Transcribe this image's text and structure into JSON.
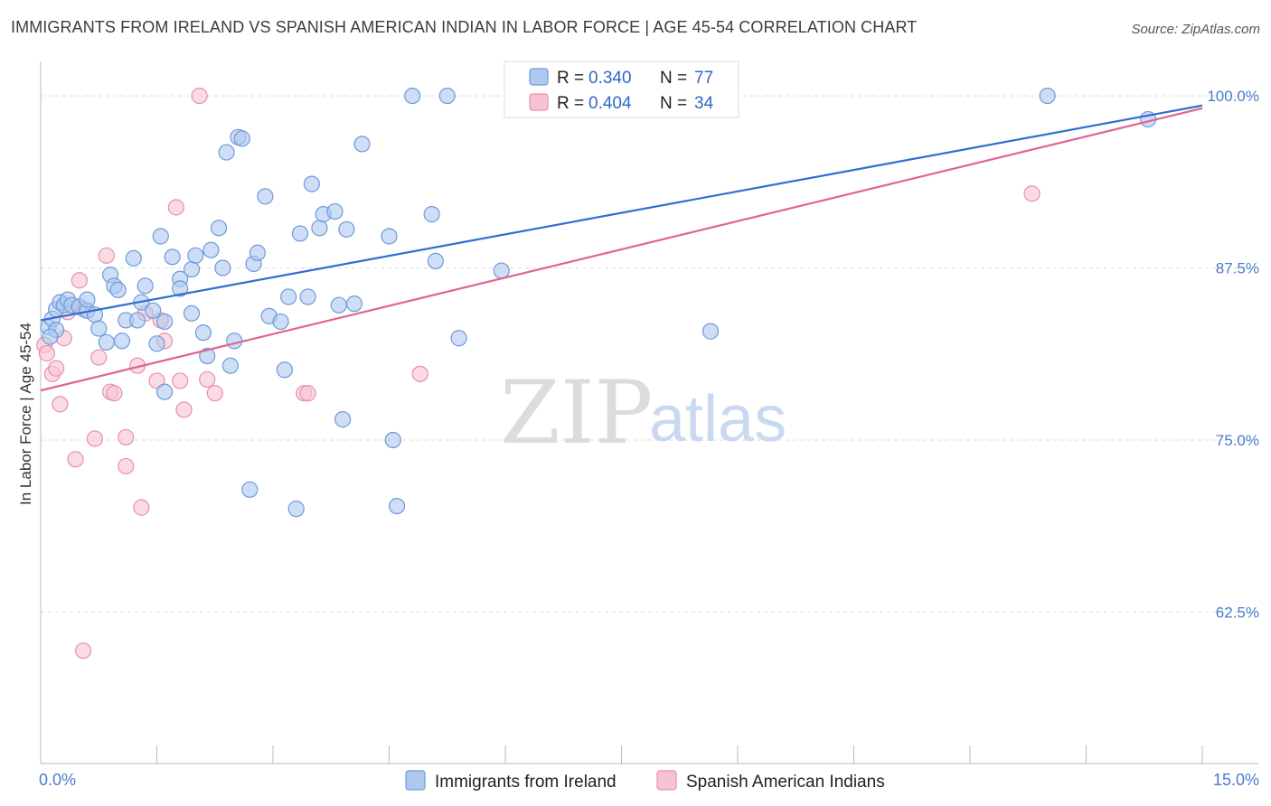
{
  "title": "IMMIGRANTS FROM IRELAND VS SPANISH AMERICAN INDIAN IN LABOR FORCE | AGE 45-54 CORRELATION CHART",
  "source": "Source: ZipAtlas.com",
  "watermark": {
    "zip": "ZIP",
    "atlas": "atlas"
  },
  "colors": {
    "blue_fill": "#aec8f0",
    "blue_stroke": "#6f9ad8",
    "blue_line": "#2f6fd0",
    "pink_fill": "#f7c3d2",
    "pink_stroke": "#e98fab",
    "pink_line": "#e0648f",
    "tick_text": "#4a7cc9",
    "grid": "#dddddd"
  },
  "legend": {
    "r_label": "R =",
    "n_label": "N =",
    "series": [
      {
        "r": "0.340",
        "n": "77"
      },
      {
        "r": "0.404",
        "n": "34"
      }
    ]
  },
  "chart_data": {
    "type": "scatter",
    "title": "IMMIGRANTS FROM IRELAND VS SPANISH AMERICAN INDIAN IN LABOR FORCE | AGE 45-54 CORRELATION CHART",
    "xlabel": "",
    "ylabel": "In Labor Force | Age 45-54",
    "xlim": [
      0,
      15
    ],
    "ylim": [
      51.5,
      102.5
    ],
    "x_tick_labels": [
      "0.0%",
      "15.0%"
    ],
    "y_ticks": [
      62.5,
      75.0,
      87.5,
      100.0
    ],
    "y_tick_labels": [
      "62.5%",
      "75.0%",
      "87.5%",
      "100.0%"
    ],
    "legend_position": "top-center",
    "series": [
      {
        "name": "Immigrants from Ireland",
        "trend": [
          [
            0,
            83.7
          ],
          [
            15,
            99.3
          ]
        ],
        "points": [
          [
            0.1,
            83.2
          ],
          [
            0.15,
            83.8
          ],
          [
            0.2,
            83.0
          ],
          [
            0.2,
            84.5
          ],
          [
            0.25,
            85.0
          ],
          [
            0.3,
            84.8
          ],
          [
            0.35,
            85.2
          ],
          [
            0.4,
            84.8
          ],
          [
            0.5,
            84.7
          ],
          [
            0.6,
            84.4
          ],
          [
            0.6,
            85.2
          ],
          [
            0.7,
            84.1
          ],
          [
            0.75,
            83.1
          ],
          [
            0.85,
            82.1
          ],
          [
            0.9,
            87.0
          ],
          [
            0.95,
            86.2
          ],
          [
            1.0,
            85.9
          ],
          [
            1.05,
            82.2
          ],
          [
            1.1,
            83.7
          ],
          [
            1.2,
            88.2
          ],
          [
            1.25,
            83.7
          ],
          [
            1.3,
            85.0
          ],
          [
            1.35,
            86.2
          ],
          [
            1.45,
            84.4
          ],
          [
            1.5,
            82.0
          ],
          [
            1.55,
            89.8
          ],
          [
            1.6,
            83.6
          ],
          [
            1.6,
            78.5
          ],
          [
            1.7,
            88.3
          ],
          [
            1.8,
            86.7
          ],
          [
            1.8,
            86.0
          ],
          [
            1.95,
            84.2
          ],
          [
            1.95,
            87.4
          ],
          [
            2.0,
            88.4
          ],
          [
            2.1,
            82.8
          ],
          [
            2.15,
            81.1
          ],
          [
            2.2,
            88.8
          ],
          [
            2.3,
            90.4
          ],
          [
            2.35,
            87.5
          ],
          [
            2.4,
            95.9
          ],
          [
            2.45,
            80.4
          ],
          [
            2.5,
            82.2
          ],
          [
            2.55,
            97.0
          ],
          [
            2.6,
            96.9
          ],
          [
            2.7,
            71.4
          ],
          [
            2.75,
            87.8
          ],
          [
            2.8,
            88.6
          ],
          [
            2.9,
            92.7
          ],
          [
            2.95,
            84.0
          ],
          [
            3.1,
            83.6
          ],
          [
            3.15,
            80.1
          ],
          [
            3.2,
            85.4
          ],
          [
            3.3,
            70.0
          ],
          [
            3.35,
            90.0
          ],
          [
            3.45,
            85.4
          ],
          [
            3.5,
            93.6
          ],
          [
            3.6,
            90.4
          ],
          [
            3.65,
            91.4
          ],
          [
            3.8,
            91.6
          ],
          [
            3.85,
            84.8
          ],
          [
            3.9,
            76.5
          ],
          [
            3.95,
            90.3
          ],
          [
            4.05,
            84.9
          ],
          [
            4.15,
            96.5
          ],
          [
            4.5,
            89.8
          ],
          [
            4.55,
            75.0
          ],
          [
            4.6,
            70.2
          ],
          [
            4.8,
            100.0
          ],
          [
            5.05,
            91.4
          ],
          [
            5.1,
            88.0
          ],
          [
            5.25,
            100.0
          ],
          [
            5.4,
            82.4
          ],
          [
            5.95,
            87.3
          ],
          [
            8.65,
            82.9
          ],
          [
            13.0,
            100.0
          ],
          [
            14.3,
            98.3
          ],
          [
            0.12,
            82.5
          ]
        ]
      },
      {
        "name": "Spanish American Indians",
        "trend": [
          [
            0,
            78.6
          ],
          [
            15,
            99.1
          ]
        ],
        "points": [
          [
            0.05,
            81.9
          ],
          [
            0.08,
            81.3
          ],
          [
            0.15,
            79.8
          ],
          [
            0.2,
            80.2
          ],
          [
            0.25,
            77.6
          ],
          [
            0.3,
            82.4
          ],
          [
            0.35,
            84.3
          ],
          [
            0.45,
            73.6
          ],
          [
            0.5,
            86.6
          ],
          [
            0.55,
            84.5
          ],
          [
            0.55,
            59.7
          ],
          [
            0.7,
            75.1
          ],
          [
            0.75,
            81.0
          ],
          [
            0.85,
            88.4
          ],
          [
            0.9,
            78.5
          ],
          [
            0.95,
            78.4
          ],
          [
            1.1,
            73.1
          ],
          [
            1.1,
            75.2
          ],
          [
            1.25,
            80.4
          ],
          [
            1.3,
            70.1
          ],
          [
            1.35,
            84.2
          ],
          [
            1.5,
            79.3
          ],
          [
            1.55,
            83.7
          ],
          [
            1.6,
            82.2
          ],
          [
            1.75,
            91.9
          ],
          [
            1.8,
            79.3
          ],
          [
            1.85,
            77.2
          ],
          [
            2.05,
            100.0
          ],
          [
            2.15,
            79.4
          ],
          [
            2.25,
            78.4
          ],
          [
            3.4,
            78.4
          ],
          [
            3.45,
            78.4
          ],
          [
            4.9,
            79.8
          ],
          [
            12.8,
            92.9
          ]
        ]
      }
    ]
  },
  "bottom_legend": [
    "Immigrants from Ireland",
    "Spanish American Indians"
  ]
}
